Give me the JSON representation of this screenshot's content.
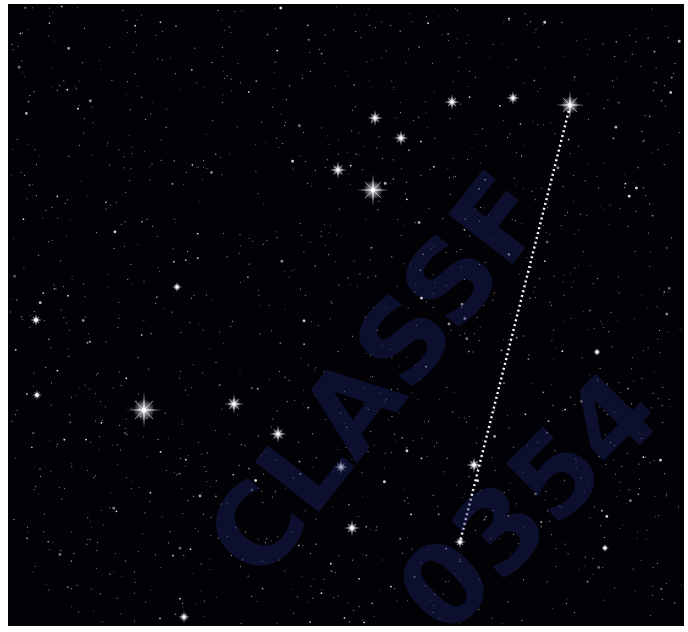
{
  "watermark": {
    "line1": "CLASSF",
    "line2": "0354"
  }
}
